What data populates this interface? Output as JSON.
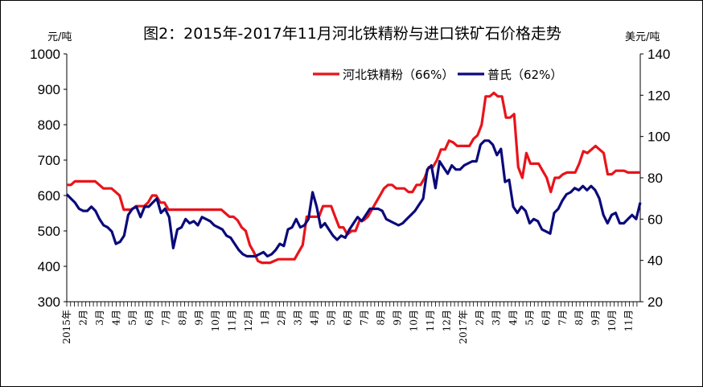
{
  "chart_data": {
    "type": "line",
    "title": "图2：2015年-2017年11月河北铁精粉与进口铁矿石价格走势",
    "ylabel_left": "元/吨",
    "ylabel_right": "美元/吨",
    "ylim_left": [
      300,
      1000
    ],
    "ylim_right": [
      20,
      140
    ],
    "yticks_left": [
      300,
      400,
      500,
      600,
      700,
      800,
      900,
      1000
    ],
    "yticks_right": [
      20,
      40,
      60,
      80,
      100,
      120,
      140
    ],
    "x_range_months": [
      0,
      34.7
    ],
    "x_labels": [
      "2015年",
      "2月",
      "3月",
      "4月",
      "5月",
      "6月",
      "7月",
      "8月",
      "9月",
      "10月",
      "11月",
      "12月",
      "1月",
      "2月",
      "3月",
      "4月",
      "5月",
      "6月",
      "7月",
      "8月",
      "9月",
      "10月",
      "11月",
      "12月",
      "2017年",
      "2月",
      "3月",
      "4月",
      "5月",
      "6月",
      "7月",
      "8月",
      "9月",
      "10月",
      "11月"
    ],
    "legend_position": "top-right",
    "series": [
      {
        "name": "河北铁精粉（66%）",
        "axis": "left",
        "color": "#e8141b",
        "values": [
          630,
          630,
          640,
          640,
          640,
          640,
          640,
          640,
          630,
          620,
          620,
          620,
          610,
          600,
          560,
          560,
          560,
          570,
          570,
          570,
          580,
          600,
          600,
          580,
          580,
          560,
          560,
          560,
          560,
          560,
          560,
          560,
          560,
          560,
          560,
          560,
          560,
          560,
          560,
          550,
          540,
          540,
          530,
          510,
          500,
          460,
          440,
          415,
          410,
          410,
          410,
          415,
          420,
          420,
          420,
          420,
          420,
          440,
          460,
          540,
          540,
          540,
          540,
          570,
          570,
          570,
          540,
          510,
          510,
          490,
          500,
          500,
          530,
          530,
          540,
          560,
          580,
          600,
          620,
          630,
          630,
          620,
          620,
          620,
          610,
          610,
          630,
          630,
          650,
          680,
          680,
          700,
          730,
          730,
          755,
          750,
          740,
          740,
          740,
          740,
          760,
          770,
          800,
          880,
          880,
          890,
          880,
          880,
          820,
          820,
          830,
          680,
          650,
          720,
          690,
          690,
          690,
          670,
          650,
          610,
          650,
          650,
          660,
          665,
          665,
          665,
          690,
          725,
          720,
          730,
          740,
          730,
          720,
          660,
          660,
          670,
          670,
          670,
          665,
          665,
          665,
          665
        ]
      },
      {
        "name": "普氏（62%）",
        "axis": "right",
        "color": "#0a0a7a",
        "values": [
          72,
          70,
          68,
          65,
          64,
          64,
          66,
          64,
          60,
          57,
          56,
          54,
          48,
          49,
          52,
          62,
          65,
          66,
          61,
          66,
          66,
          68,
          70,
          63,
          65,
          61,
          46,
          55,
          56,
          60,
          58,
          59,
          57,
          61,
          60,
          59,
          57,
          56,
          55,
          52,
          51,
          48,
          45,
          43,
          42,
          42,
          42,
          43,
          44,
          42,
          43,
          45,
          48,
          47,
          55,
          56,
          60,
          56,
          57,
          60,
          73,
          66,
          56,
          58,
          55,
          52,
          50,
          52,
          51,
          55,
          58,
          61,
          59,
          62,
          65,
          65,
          65,
          64,
          60,
          59,
          58,
          57,
          58,
          60,
          62,
          64,
          67,
          70,
          84,
          86,
          75,
          88,
          85,
          82,
          86,
          84,
          84,
          86,
          87,
          88,
          88,
          96,
          98,
          98,
          96,
          91,
          94,
          78,
          79,
          66,
          63,
          66,
          64,
          58,
          60,
          59,
          55,
          54,
          53,
          63,
          65,
          69,
          72,
          73,
          75,
          74,
          76,
          74,
          76,
          74,
          70,
          62,
          58,
          62,
          63,
          58,
          58,
          60,
          62,
          60,
          68
        ]
      }
    ]
  }
}
